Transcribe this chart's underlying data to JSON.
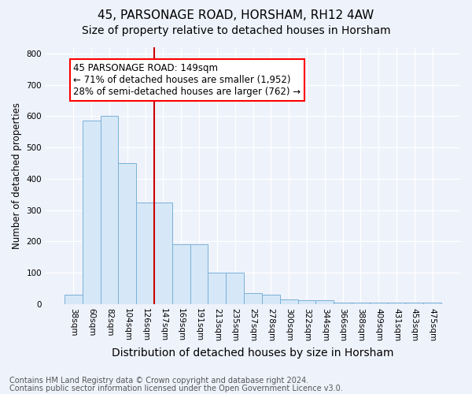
{
  "title1": "45, PARSONAGE ROAD, HORSHAM, RH12 4AW",
  "title2": "Size of property relative to detached houses in Horsham",
  "xlabel": "Distribution of detached houses by size in Horsham",
  "ylabel": "Number of detached properties",
  "footnote1": "Contains HM Land Registry data © Crown copyright and database right 2024.",
  "footnote2": "Contains public sector information licensed under the Open Government Licence v3.0.",
  "categories": [
    "38sqm",
    "60sqm",
    "82sqm",
    "104sqm",
    "126sqm",
    "147sqm",
    "169sqm",
    "191sqm",
    "213sqm",
    "235sqm",
    "257sqm",
    "278sqm",
    "300sqm",
    "322sqm",
    "344sqm",
    "366sqm",
    "388sqm",
    "409sqm",
    "431sqm",
    "453sqm",
    "475sqm"
  ],
  "values": [
    30,
    585,
    600,
    450,
    325,
    325,
    190,
    190,
    100,
    100,
    35,
    30,
    15,
    12,
    12,
    5,
    5,
    5,
    5,
    5,
    5
  ],
  "bar_color": "#d6e8f7",
  "bar_edge_color": "#7ab0d8",
  "red_line_x": 4.5,
  "annotation_text": "45 PARSONAGE ROAD: 149sqm\n← 71% of detached houses are smaller (1,952)\n28% of semi-detached houses are larger (762) →",
  "annotation_box_color": "white",
  "annotation_box_edge_color": "red",
  "red_line_color": "#cc0000",
  "ylim": [
    0,
    820
  ],
  "yticks": [
    0,
    100,
    200,
    300,
    400,
    500,
    600,
    700,
    800
  ],
  "background_color": "#eef2fb",
  "title1_fontsize": 11,
  "title2_fontsize": 10,
  "xlabel_fontsize": 10,
  "ylabel_fontsize": 8.5,
  "tick_fontsize": 7.5,
  "annotation_fontsize": 8.5,
  "footnote_fontsize": 7
}
